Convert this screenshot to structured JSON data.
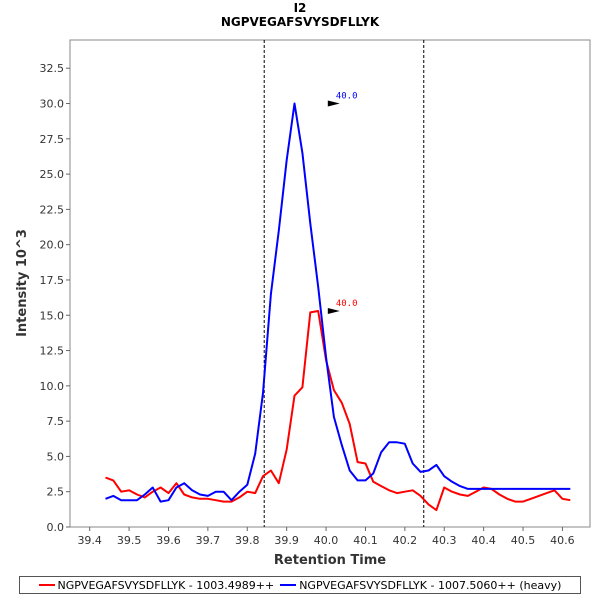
{
  "chart_data": {
    "type": "line",
    "title": "I2",
    "subtitle": "NGPVEGAFSVYSDFLLYK",
    "xlabel": "Retention Time",
    "ylabel": "Intensity 10^3",
    "xlim": [
      39.35,
      40.67
    ],
    "ylim": [
      0,
      34.5
    ],
    "xticks": [
      "39.4",
      "39.5",
      "39.6",
      "39.7",
      "39.8",
      "39.9",
      "40.0",
      "40.1",
      "40.2",
      "40.3",
      "40.4",
      "40.5",
      "40.6"
    ],
    "yticks": [
      "0.0",
      "2.5",
      "5.0",
      "7.5",
      "10.0",
      "12.5",
      "15.0",
      "17.5",
      "20.0",
      "22.5",
      "25.0",
      "27.5",
      "30.0",
      "32.5"
    ],
    "grid": false,
    "legend_position": "bottom",
    "boundaries": [
      39.843,
      40.248
    ],
    "series": [
      {
        "name": "NGPVEGAFSVYSDFLLYK - 1003.4989++",
        "color": "#ff0000",
        "x": [
          39.44,
          39.46,
          39.48,
          39.5,
          39.52,
          39.54,
          39.56,
          39.58,
          39.6,
          39.62,
          39.64,
          39.66,
          39.68,
          39.7,
          39.72,
          39.74,
          39.76,
          39.78,
          39.8,
          39.82,
          39.84,
          39.86,
          39.88,
          39.9,
          39.92,
          39.94,
          39.96,
          39.98,
          40.0,
          40.02,
          40.04,
          40.06,
          40.08,
          40.1,
          40.12,
          40.14,
          40.16,
          40.18,
          40.2,
          40.22,
          40.24,
          40.26,
          40.28,
          40.3,
          40.32,
          40.34,
          40.36,
          40.38,
          40.4,
          40.42,
          40.44,
          40.46,
          40.48,
          40.5,
          40.52,
          40.54,
          40.56,
          40.58,
          40.6,
          40.62
        ],
        "y": [
          3.5,
          3.3,
          2.5,
          2.6,
          2.3,
          2.1,
          2.5,
          2.8,
          2.4,
          3.1,
          2.3,
          2.1,
          2.0,
          2.0,
          1.9,
          1.8,
          1.8,
          2.1,
          2.5,
          2.4,
          3.6,
          4.0,
          3.1,
          5.5,
          9.3,
          9.9,
          15.2,
          15.3,
          11.8,
          9.7,
          8.8,
          7.3,
          4.6,
          4.5,
          3.2,
          2.9,
          2.6,
          2.4,
          2.5,
          2.6,
          2.2,
          1.6,
          1.2,
          2.8,
          2.5,
          2.3,
          2.2,
          2.5,
          2.8,
          2.7,
          2.3,
          2.0,
          1.8,
          1.8,
          2.0,
          2.2,
          2.4,
          2.6,
          2.0,
          1.9
        ],
        "annotation": {
          "label": "40.0",
          "x": 40.04,
          "y": 15.3
        }
      },
      {
        "name": "NGPVEGAFSVYSDFLLYK - 1007.5060++ (heavy)",
        "color": "#0000ff",
        "x": [
          39.44,
          39.46,
          39.48,
          39.5,
          39.52,
          39.54,
          39.56,
          39.58,
          39.6,
          39.62,
          39.64,
          39.66,
          39.68,
          39.7,
          39.72,
          39.74,
          39.76,
          39.78,
          39.8,
          39.82,
          39.84,
          39.86,
          39.88,
          39.9,
          39.92,
          39.94,
          39.96,
          39.98,
          40.0,
          40.02,
          40.04,
          40.06,
          40.08,
          40.1,
          40.12,
          40.14,
          40.16,
          40.18,
          40.2,
          40.22,
          40.24,
          40.26,
          40.28,
          40.3,
          40.32,
          40.34,
          40.36,
          40.38,
          40.4,
          40.42,
          40.44,
          40.46,
          40.48,
          40.5,
          40.52,
          40.54,
          40.56,
          40.58,
          40.6,
          40.62
        ],
        "y": [
          2.0,
          2.2,
          1.9,
          1.9,
          1.9,
          2.3,
          2.8,
          1.8,
          1.9,
          2.8,
          3.1,
          2.6,
          2.3,
          2.2,
          2.5,
          2.5,
          1.9,
          2.5,
          3.0,
          5.2,
          9.5,
          16.5,
          21.0,
          26.0,
          30.0,
          26.5,
          21.5,
          17.0,
          12.0,
          7.8,
          5.8,
          4.0,
          3.3,
          3.3,
          3.8,
          5.3,
          6.0,
          6.0,
          5.9,
          4.5,
          3.9,
          4.0,
          4.4,
          3.6,
          3.2,
          2.9,
          2.7,
          2.7,
          2.7,
          2.7,
          2.7,
          2.7,
          2.7,
          2.7,
          2.7,
          2.7,
          2.7,
          2.7,
          2.7,
          2.7
        ],
        "annotation": {
          "label": "40.0",
          "x": 40.04,
          "y": 30.0
        }
      }
    ]
  }
}
